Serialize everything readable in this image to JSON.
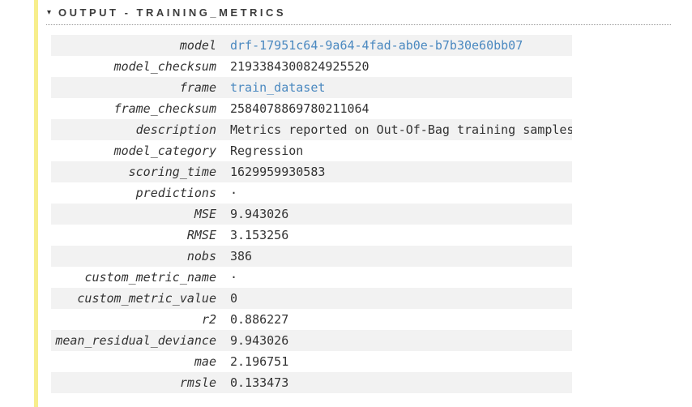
{
  "section": {
    "collapse_icon": "▾",
    "title": "OUTPUT - TRAINING_METRICS"
  },
  "colors": {
    "accent_bar": "#f7ee8c",
    "row_stripe": "#f2f2f2",
    "link": "#4b89c0",
    "text": "#333333",
    "header_text": "#3c3c3c",
    "dotted_rule": "#9a9a9a"
  },
  "table": {
    "rows": [
      {
        "label": "model",
        "value": "drf-17951c64-9a64-4fad-ab0e-b7b30e60bb07",
        "type": "link"
      },
      {
        "label": "model_checksum",
        "value": "2193384300824925520",
        "type": "text"
      },
      {
        "label": "frame",
        "value": "train_dataset",
        "type": "link"
      },
      {
        "label": "frame_checksum",
        "value": "2584078869780211064",
        "type": "text"
      },
      {
        "label": "description",
        "value": "Metrics reported on Out-Of-Bag training samples",
        "type": "text"
      },
      {
        "label": "model_category",
        "value": "Regression",
        "type": "text"
      },
      {
        "label": "scoring_time",
        "value": "1629959930583",
        "type": "text"
      },
      {
        "label": "predictions",
        "value": "·",
        "type": "text"
      },
      {
        "label": "MSE",
        "value": "9.943026",
        "type": "text"
      },
      {
        "label": "RMSE",
        "value": "3.153256",
        "type": "text"
      },
      {
        "label": "nobs",
        "value": "386",
        "type": "text"
      },
      {
        "label": "custom_metric_name",
        "value": "·",
        "type": "text"
      },
      {
        "label": "custom_metric_value",
        "value": "0",
        "type": "text"
      },
      {
        "label": "r2",
        "value": "0.886227",
        "type": "text"
      },
      {
        "label": "mean_residual_deviance",
        "value": "9.943026",
        "type": "text"
      },
      {
        "label": "mae",
        "value": "2.196751",
        "type": "text"
      },
      {
        "label": "rmsle",
        "value": "0.133473",
        "type": "text"
      }
    ]
  }
}
